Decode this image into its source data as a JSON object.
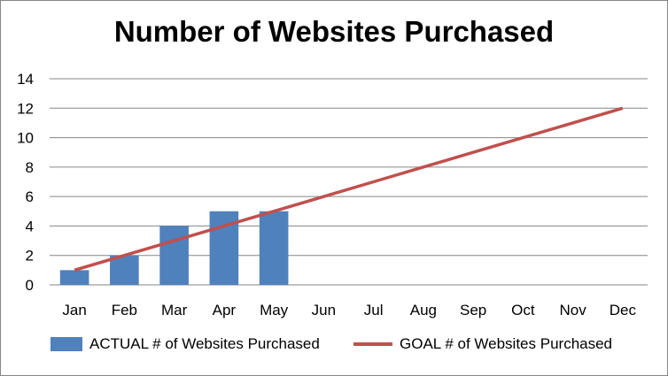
{
  "chart_data": {
    "type": "bar",
    "title": "Number of Websites Purchased",
    "xlabel": "",
    "ylabel": "",
    "categories": [
      "Jan",
      "Feb",
      "Mar",
      "Apr",
      "May",
      "Jun",
      "Jul",
      "Aug",
      "Sep",
      "Oct",
      "Nov",
      "Dec"
    ],
    "series": [
      {
        "name": "ACTUAL # of Websites Purchased",
        "type": "bar",
        "color": "#4F81BD",
        "values": [
          1,
          2,
          4,
          5,
          5,
          null,
          null,
          null,
          null,
          null,
          null,
          null
        ]
      },
      {
        "name": "GOAL # of Websites Purchased",
        "type": "line",
        "color": "#C0504D",
        "values": [
          1,
          2,
          3,
          4,
          5,
          6,
          7,
          8,
          9,
          10,
          11,
          12
        ]
      }
    ],
    "ylim": [
      0,
      14
    ],
    "yticks": [
      0,
      2,
      4,
      6,
      8,
      10,
      12,
      14
    ],
    "grid": true,
    "legend_position": "bottom"
  }
}
